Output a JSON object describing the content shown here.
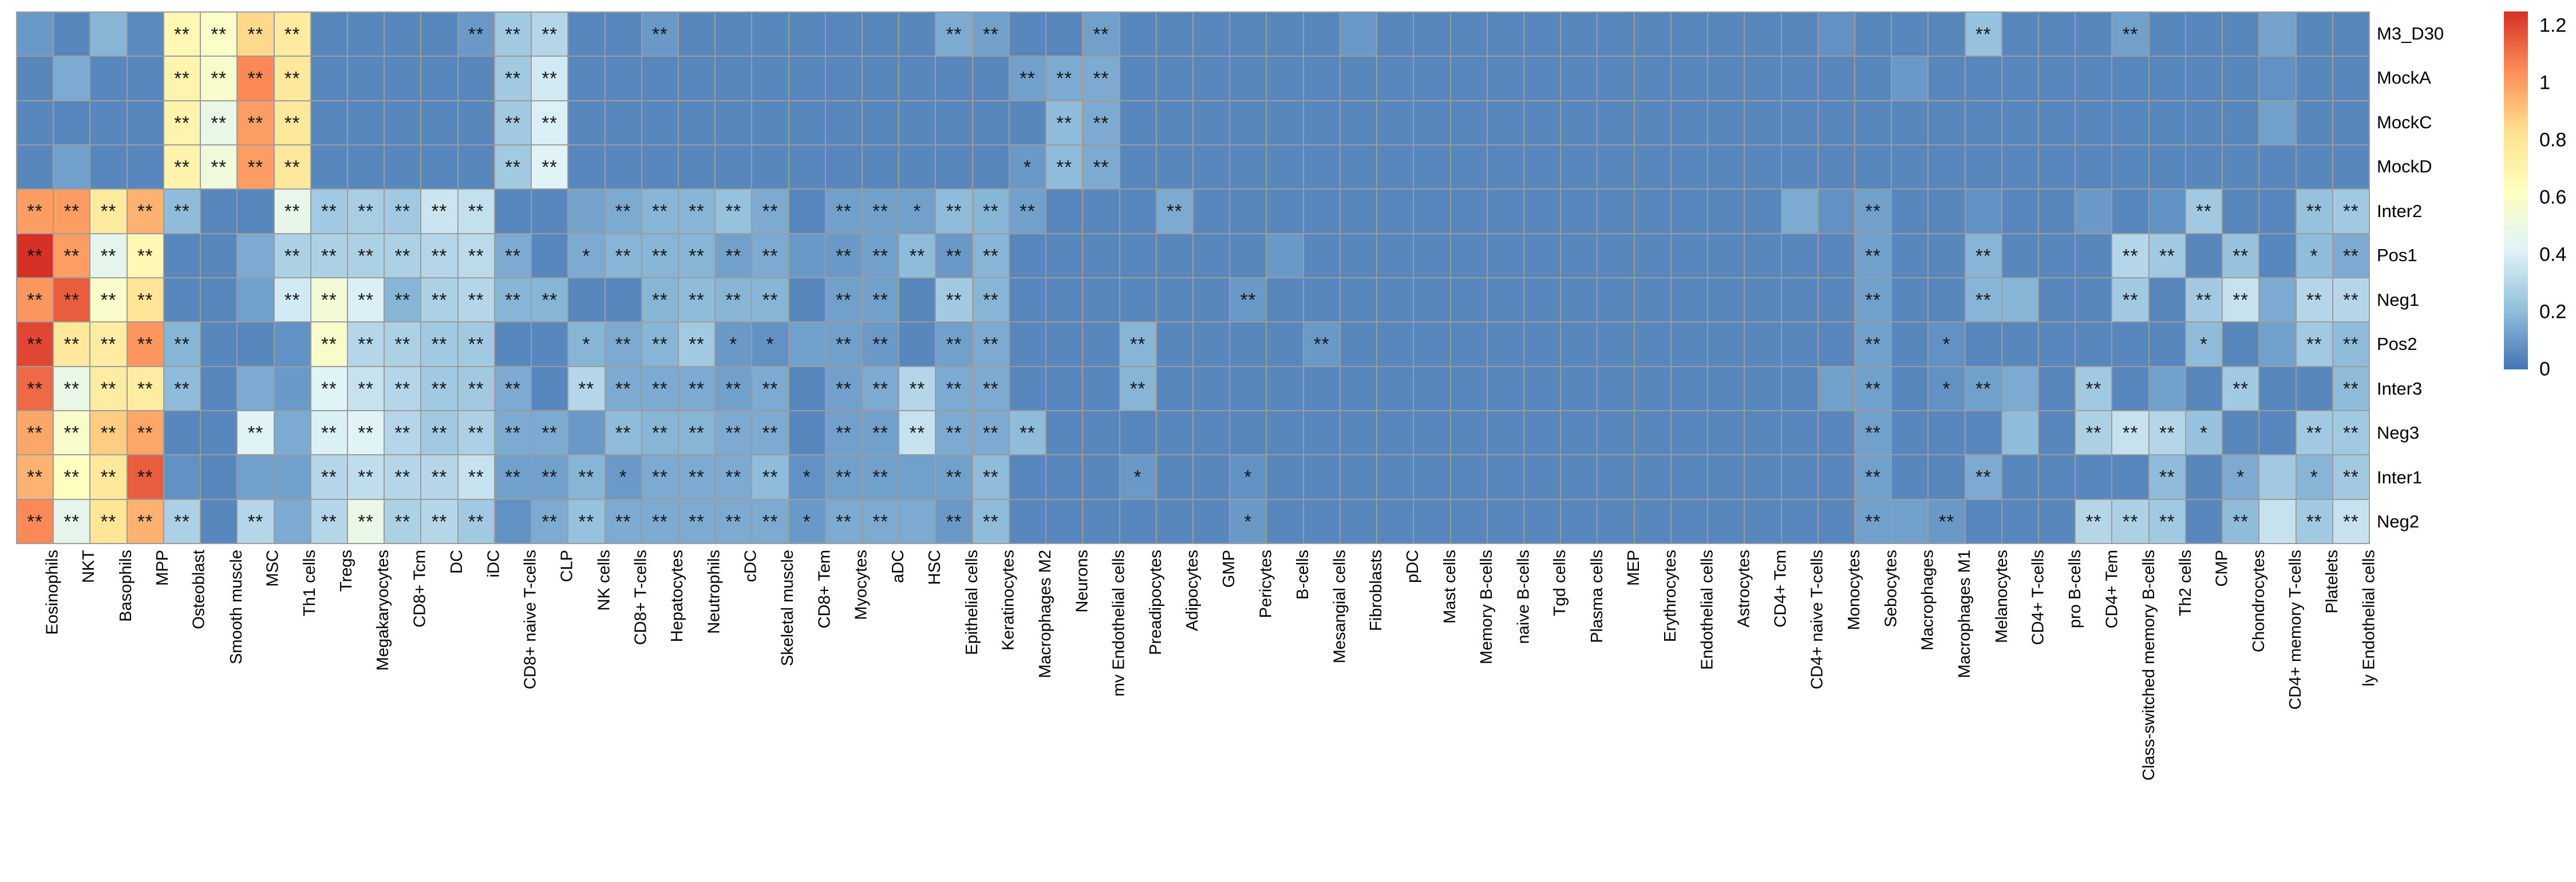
{
  "chart_data": {
    "type": "heatmap",
    "title": "",
    "rows": [
      "M3_D30",
      "MockA",
      "MockC",
      "MockD",
      "Inter2",
      "Pos1",
      "Neg1",
      "Pos2",
      "Inter3",
      "Neg3",
      "Inter1",
      "Neg2"
    ],
    "columns": [
      "Eosinophils",
      "NKT",
      "Basophils",
      "MPP",
      "Osteoblast",
      "Smooth muscle",
      "MSC",
      "Th1 cells",
      "Tregs",
      "Megakaryocytes",
      "CD8+ Tcm",
      "DC",
      "iDC",
      "CD8+ naive T-cells",
      "CLP",
      "NK cells",
      "CD8+ T-cells",
      "Hepatocytes",
      "Neutrophils",
      "cDC",
      "Skeletal muscle",
      "CD8+ Tem",
      "Myocytes",
      "aDC",
      "HSC",
      "Epithelial cells",
      "Keratinocytes",
      "Macrophages M2",
      "Neurons",
      "mv Endothelial cells",
      "Preadipocytes",
      "Adipocytes",
      "GMP",
      "Pericytes",
      "B-cells",
      "Mesangial cells",
      "Fibroblasts",
      "pDC",
      "Mast cells",
      "Memory B-cells",
      "naive B-cells",
      "Tgd cells",
      "Plasma cells",
      "MEP",
      "Erythrocytes",
      "Endothelial cells",
      "Astrocytes",
      "CD4+ Tcm",
      "CD4+ naive T-cells",
      "Monocytes",
      "Sebocytes",
      "Macrophages",
      "Macrophages M1",
      "Melanocytes",
      "CD4+ T-cells",
      "pro B-cells",
      "CD4+ Tem",
      "Class-switched memory B-cells",
      "Th2 cells",
      "CMP",
      "Chondrocytes",
      "CD4+ memory T-cells",
      "Platelets",
      "ly Endothelial cells"
    ],
    "values": [
      [
        0.1,
        0.05,
        0.18,
        0.06,
        0.68,
        0.6,
        0.85,
        0.76,
        0.05,
        0.05,
        0.05,
        0.05,
        0.1,
        0.25,
        0.3,
        0.05,
        0.05,
        0.1,
        0.05,
        0.05,
        0.05,
        0.05,
        0.05,
        0.05,
        0.05,
        0.15,
        0.12,
        0.05,
        0.05,
        0.12,
        0.05,
        0.05,
        0.05,
        0.05,
        0.05,
        0.05,
        0.1,
        0.05,
        0.05,
        0.05,
        0.05,
        0.05,
        0.05,
        0.05,
        0.05,
        0.05,
        0.05,
        0.05,
        0.05,
        0.08,
        0.05,
        0.05,
        0.05,
        0.22,
        0.05,
        0.05,
        0.05,
        0.12,
        0.05,
        0.05,
        0.05,
        0.13,
        0.05,
        0.05
      ],
      [
        0.05,
        0.15,
        0.05,
        0.05,
        0.7,
        0.58,
        1.05,
        0.78,
        0.05,
        0.05,
        0.05,
        0.05,
        0.05,
        0.25,
        0.38,
        0.05,
        0.05,
        0.05,
        0.05,
        0.05,
        0.05,
        0.05,
        0.05,
        0.05,
        0.05,
        0.05,
        0.05,
        0.12,
        0.15,
        0.15,
        0.05,
        0.05,
        0.05,
        0.05,
        0.05,
        0.05,
        0.05,
        0.05,
        0.05,
        0.05,
        0.05,
        0.05,
        0.05,
        0.05,
        0.05,
        0.05,
        0.05,
        0.05,
        0.05,
        0.05,
        0.05,
        0.1,
        0.05,
        0.05,
        0.05,
        0.05,
        0.05,
        0.05,
        0.05,
        0.05,
        0.05,
        0.08,
        0.05,
        0.05
      ],
      [
        0.05,
        0.05,
        0.05,
        0.05,
        0.7,
        0.48,
        1.0,
        0.78,
        0.05,
        0.05,
        0.05,
        0.05,
        0.05,
        0.25,
        0.4,
        0.05,
        0.05,
        0.05,
        0.05,
        0.05,
        0.05,
        0.05,
        0.05,
        0.05,
        0.05,
        0.05,
        0.05,
        0.05,
        0.2,
        0.15,
        0.05,
        0.05,
        0.05,
        0.05,
        0.05,
        0.05,
        0.05,
        0.05,
        0.05,
        0.05,
        0.05,
        0.05,
        0.05,
        0.05,
        0.05,
        0.05,
        0.05,
        0.05,
        0.05,
        0.05,
        0.05,
        0.05,
        0.05,
        0.05,
        0.05,
        0.05,
        0.05,
        0.05,
        0.05,
        0.05,
        0.05,
        0.12,
        0.05,
        0.05
      ],
      [
        0.05,
        0.12,
        0.05,
        0.05,
        0.7,
        0.52,
        1.0,
        0.78,
        0.05,
        0.05,
        0.05,
        0.05,
        0.05,
        0.25,
        0.42,
        0.05,
        0.05,
        0.05,
        0.05,
        0.05,
        0.05,
        0.05,
        0.05,
        0.05,
        0.05,
        0.05,
        0.05,
        0.1,
        0.2,
        0.15,
        0.05,
        0.05,
        0.05,
        0.05,
        0.05,
        0.05,
        0.05,
        0.05,
        0.05,
        0.05,
        0.05,
        0.05,
        0.05,
        0.05,
        0.05,
        0.05,
        0.05,
        0.05,
        0.05,
        0.05,
        0.05,
        0.05,
        0.05,
        0.05,
        0.05,
        0.05,
        0.05,
        0.05,
        0.05,
        0.05,
        0.05,
        0.05,
        0.05,
        0.05
      ],
      [
        1.0,
        1.0,
        0.76,
        0.95,
        0.2,
        0.05,
        0.05,
        0.47,
        0.25,
        0.27,
        0.25,
        0.36,
        0.34,
        0.05,
        0.05,
        0.13,
        0.15,
        0.18,
        0.18,
        0.22,
        0.15,
        0.05,
        0.12,
        0.12,
        0.12,
        0.2,
        0.18,
        0.12,
        0.05,
        0.05,
        0.05,
        0.15,
        0.05,
        0.05,
        0.05,
        0.05,
        0.05,
        0.05,
        0.05,
        0.05,
        0.05,
        0.05,
        0.05,
        0.05,
        0.05,
        0.05,
        0.05,
        0.05,
        0.15,
        0.08,
        0.12,
        0.05,
        0.05,
        0.08,
        0.05,
        0.05,
        0.1,
        0.05,
        0.08,
        0.25,
        0.05,
        0.05,
        0.22,
        0.25
      ],
      [
        1.25,
        1.0,
        0.46,
        0.68,
        0.05,
        0.05,
        0.15,
        0.28,
        0.28,
        0.28,
        0.28,
        0.3,
        0.32,
        0.15,
        0.05,
        0.15,
        0.18,
        0.18,
        0.18,
        0.12,
        0.15,
        0.1,
        0.1,
        0.12,
        0.2,
        0.1,
        0.18,
        0.05,
        0.05,
        0.05,
        0.05,
        0.05,
        0.05,
        0.05,
        0.1,
        0.05,
        0.05,
        0.05,
        0.05,
        0.05,
        0.05,
        0.05,
        0.05,
        0.05,
        0.05,
        0.05,
        0.05,
        0.05,
        0.05,
        0.05,
        0.12,
        0.05,
        0.05,
        0.18,
        0.05,
        0.05,
        0.05,
        0.3,
        0.25,
        0.05,
        0.22,
        0.05,
        0.2,
        0.15
      ],
      [
        1.02,
        1.15,
        0.58,
        0.8,
        0.05,
        0.05,
        0.12,
        0.38,
        0.54,
        0.4,
        0.18,
        0.28,
        0.3,
        0.18,
        0.18,
        0.05,
        0.05,
        0.18,
        0.2,
        0.18,
        0.18,
        0.05,
        0.12,
        0.12,
        0.05,
        0.25,
        0.18,
        0.05,
        0.05,
        0.05,
        0.05,
        0.05,
        0.05,
        0.1,
        0.05,
        0.05,
        0.05,
        0.05,
        0.05,
        0.05,
        0.05,
        0.05,
        0.05,
        0.05,
        0.05,
        0.05,
        0.05,
        0.05,
        0.05,
        0.05,
        0.12,
        0.05,
        0.05,
        0.18,
        0.18,
        0.05,
        0.05,
        0.25,
        0.05,
        0.25,
        0.35,
        0.15,
        0.3,
        0.3
      ],
      [
        1.2,
        0.78,
        0.75,
        1.02,
        0.18,
        0.05,
        0.05,
        0.08,
        0.58,
        0.3,
        0.28,
        0.25,
        0.25,
        0.05,
        0.05,
        0.18,
        0.15,
        0.18,
        0.25,
        0.1,
        0.08,
        0.12,
        0.12,
        0.1,
        0.05,
        0.12,
        0.15,
        0.05,
        0.05,
        0.05,
        0.18,
        0.05,
        0.05,
        0.05,
        0.05,
        0.1,
        0.05,
        0.05,
        0.05,
        0.05,
        0.05,
        0.05,
        0.05,
        0.05,
        0.05,
        0.05,
        0.05,
        0.05,
        0.05,
        0.05,
        0.12,
        0.05,
        0.08,
        0.05,
        0.05,
        0.05,
        0.05,
        0.05,
        0.05,
        0.2,
        0.05,
        0.12,
        0.25,
        0.2
      ],
      [
        1.12,
        0.48,
        0.75,
        0.75,
        0.2,
        0.05,
        0.15,
        0.1,
        0.42,
        0.35,
        0.3,
        0.25,
        0.25,
        0.15,
        0.05,
        0.3,
        0.15,
        0.15,
        0.15,
        0.12,
        0.15,
        0.05,
        0.12,
        0.15,
        0.3,
        0.15,
        0.15,
        0.05,
        0.05,
        0.05,
        0.18,
        0.05,
        0.05,
        0.05,
        0.05,
        0.05,
        0.05,
        0.05,
        0.05,
        0.05,
        0.05,
        0.05,
        0.05,
        0.05,
        0.05,
        0.05,
        0.05,
        0.05,
        0.05,
        0.12,
        0.12,
        0.05,
        0.08,
        0.12,
        0.15,
        0.05,
        0.25,
        0.05,
        0.12,
        0.05,
        0.25,
        0.05,
        0.05,
        0.2
      ],
      [
        0.98,
        0.58,
        0.88,
        0.98,
        0.05,
        0.05,
        0.42,
        0.15,
        0.4,
        0.42,
        0.3,
        0.25,
        0.28,
        0.15,
        0.15,
        0.1,
        0.2,
        0.18,
        0.18,
        0.15,
        0.15,
        0.05,
        0.12,
        0.12,
        0.35,
        0.15,
        0.15,
        0.2,
        0.05,
        0.05,
        0.05,
        0.05,
        0.05,
        0.05,
        0.05,
        0.05,
        0.05,
        0.05,
        0.05,
        0.05,
        0.05,
        0.05,
        0.05,
        0.05,
        0.05,
        0.05,
        0.05,
        0.05,
        0.05,
        0.05,
        0.12,
        0.05,
        0.05,
        0.05,
        0.2,
        0.05,
        0.28,
        0.35,
        0.3,
        0.22,
        0.05,
        0.05,
        0.25,
        0.25
      ],
      [
        0.95,
        0.62,
        0.78,
        1.15,
        0.08,
        0.05,
        0.12,
        0.12,
        0.3,
        0.33,
        0.3,
        0.3,
        0.35,
        0.12,
        0.12,
        0.18,
        0.1,
        0.15,
        0.15,
        0.15,
        0.2,
        0.08,
        0.12,
        0.12,
        0.12,
        0.12,
        0.2,
        0.05,
        0.05,
        0.05,
        0.1,
        0.05,
        0.05,
        0.08,
        0.05,
        0.05,
        0.05,
        0.05,
        0.05,
        0.05,
        0.05,
        0.05,
        0.05,
        0.05,
        0.05,
        0.05,
        0.05,
        0.05,
        0.05,
        0.05,
        0.12,
        0.05,
        0.05,
        0.15,
        0.05,
        0.05,
        0.05,
        0.05,
        0.2,
        0.05,
        0.15,
        0.25,
        0.18,
        0.25
      ],
      [
        1.05,
        0.46,
        0.8,
        0.95,
        0.28,
        0.05,
        0.3,
        0.15,
        0.3,
        0.48,
        0.28,
        0.3,
        0.25,
        0.08,
        0.15,
        0.22,
        0.15,
        0.15,
        0.15,
        0.15,
        0.15,
        0.1,
        0.15,
        0.15,
        0.15,
        0.1,
        0.2,
        0.05,
        0.05,
        0.05,
        0.05,
        0.05,
        0.05,
        0.1,
        0.05,
        0.05,
        0.05,
        0.05,
        0.05,
        0.05,
        0.05,
        0.05,
        0.05,
        0.05,
        0.05,
        0.05,
        0.05,
        0.05,
        0.05,
        0.05,
        0.12,
        0.12,
        0.1,
        0.05,
        0.05,
        0.05,
        0.3,
        0.28,
        0.25,
        0.05,
        0.2,
        0.35,
        0.25,
        0.35
      ]
    ],
    "significance": [
      "....2222....222..2.......22..2.......................2...2......",
      "....2222.....22............222..................................",
      "....2222.....22.............22..................................",
      "....2222.....22............122..................................",
      "22222..222222...22222.221222...2..................2........2..22",
      "2222...2222222.122222.22222.......................2..2...22.2.12",
      "2222...22222222..2222.22.22......2................2..2...2.22.22",
      "22222...22222..122211.22.22...2....2..............2.1......1..22",
      "22222...222222.222222.22222...2...................2.12..2...2..2",
      "2222..2.2222222.22222.222222......................2.....2221..22",
      "2222....2222222212222122.22...1..1................2..2....2.1.12",
      "22222.2.22222.2222222122.22......1................2.2...222.2.22"
    ],
    "significance_legend": {
      "1": "*",
      "2": "**"
    },
    "colormap": {
      "anchors": [
        0,
        0.208,
        0.417,
        0.625,
        0.833,
        1.042,
        1.25
      ],
      "colors": [
        "#4575b4",
        "#91bfdb",
        "#e0f3f8",
        "#ffffbf",
        "#fee090",
        "#fc8d59",
        "#d73027"
      ]
    },
    "colorbar": {
      "ticks": [
        "1.2",
        "1",
        "0.8",
        "0.6",
        "0.4",
        "0.2",
        "0"
      ],
      "tick_values": [
        1.2,
        1.0,
        0.8,
        0.6,
        0.4,
        0.2,
        0
      ],
      "min": 0,
      "max": 1.25
    },
    "grid_line_color": "#9c9c9c",
    "mark_color": "#141414",
    "legend_position": "right",
    "grid": "on"
  }
}
